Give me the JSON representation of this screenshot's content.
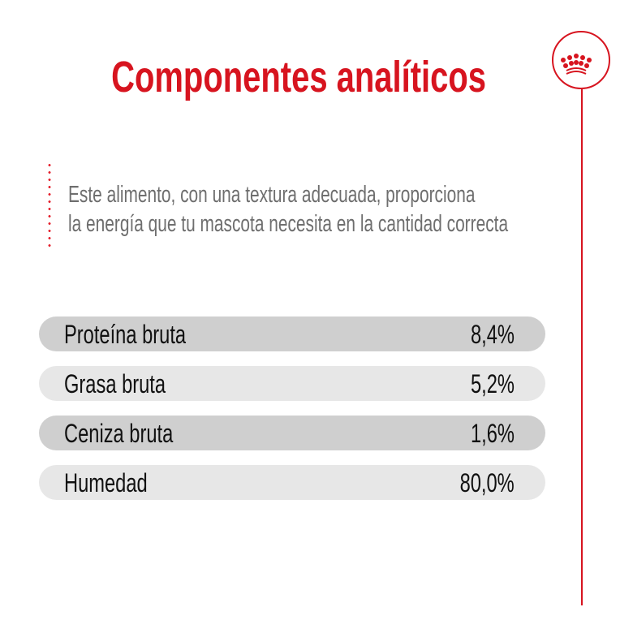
{
  "title": "Componentes analíticos",
  "description": [
    "Este alimento, con una textura adecuada, proporciona",
    "la energía que tu mascota necesita en la cantidad correcta"
  ],
  "logo": {
    "icon": "crown-icon",
    "color": "#d7141f"
  },
  "components": [
    {
      "label": "Proteína bruta",
      "value": "8,4%"
    },
    {
      "label": "Grasa bruta",
      "value": "5,2%"
    },
    {
      "label": "Ceniza bruta",
      "value": "1,6%"
    },
    {
      "label": "Humedad",
      "value": "80,0%"
    }
  ],
  "colors": {
    "accent": "#d7141f",
    "row_dark": "#cfcfcf",
    "row_light": "#e7e7e7",
    "text_grey": "#6e6e6e"
  }
}
